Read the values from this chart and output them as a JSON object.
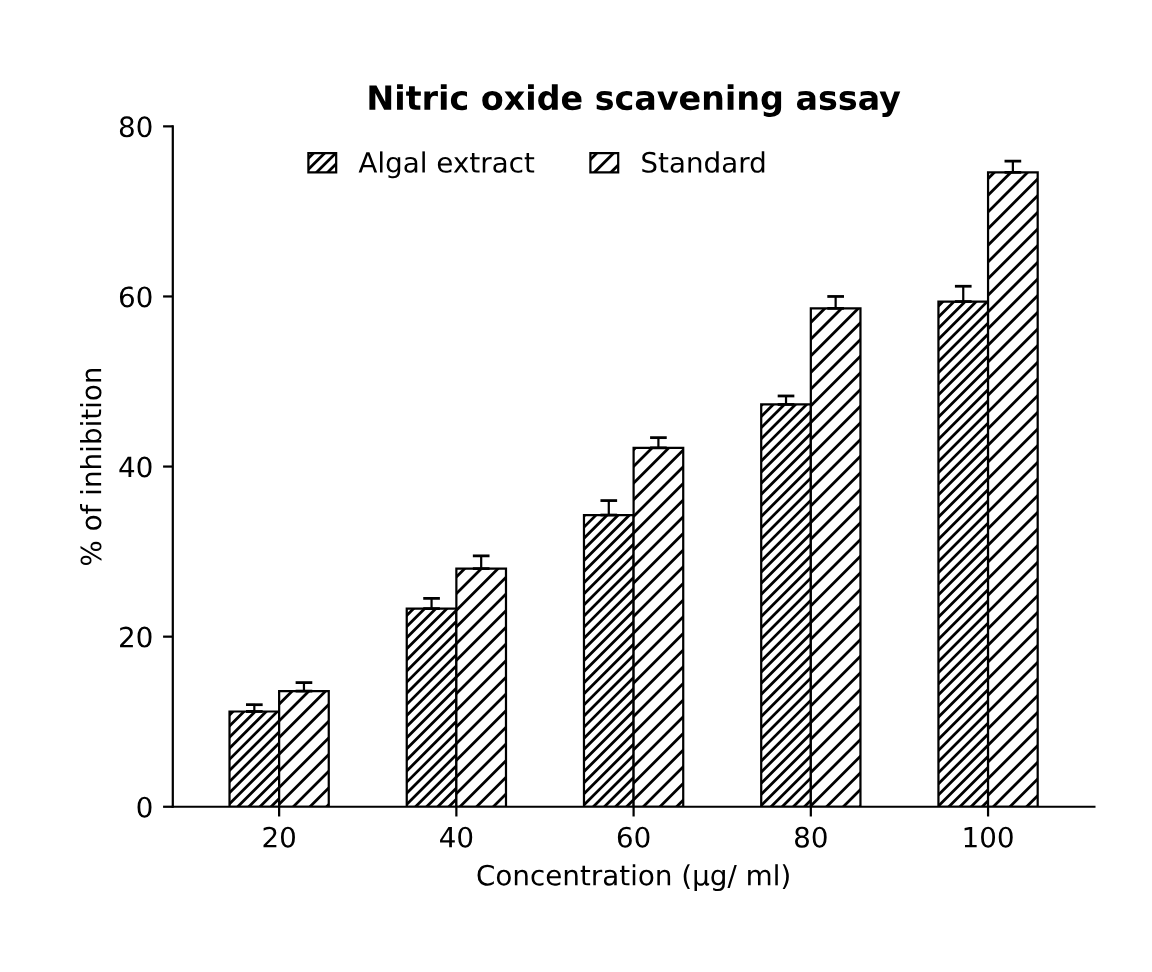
{
  "chart_data": {
    "type": "bar",
    "title": "Nitric oxide scavening assay",
    "xlabel": "Concentration (µg/ ml)",
    "ylabel": "% of inhibition",
    "categories": [
      "20",
      "40",
      "60",
      "80",
      "100"
    ],
    "series": [
      {
        "name": "Algal extract",
        "color": "#000000",
        "values": [
          11.2,
          23.3,
          34.3,
          47.3,
          59.4
        ],
        "errors": [
          0.8,
          1.2,
          1.7,
          1.0,
          1.8
        ]
      },
      {
        "name": "Standard",
        "color": "#000000",
        "values": [
          13.6,
          28.0,
          42.2,
          58.6,
          74.6
        ],
        "errors": [
          1.0,
          1.5,
          1.2,
          1.4,
          1.3
        ]
      }
    ],
    "ylim": [
      0,
      80
    ],
    "yticks": [
      0,
      20,
      40,
      60,
      80
    ],
    "grid": false,
    "legend": "top left"
  }
}
